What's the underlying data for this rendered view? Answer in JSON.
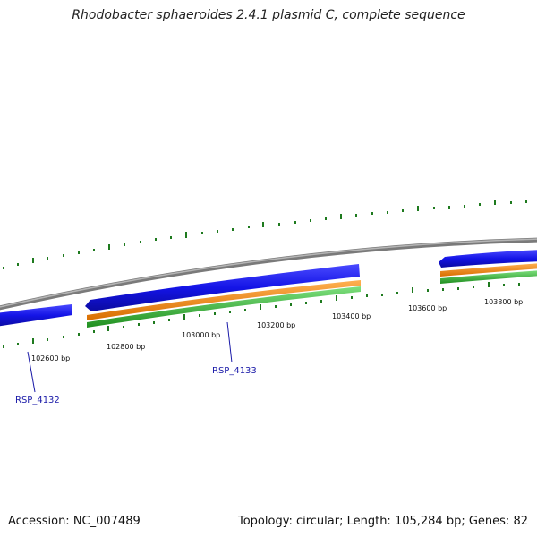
{
  "title": "Rhodobacter sphaeroides 2.4.1 plasmid C, complete sequence",
  "footer": {
    "accession": "Accession: NC_007489",
    "summary": "Topology: circular; Length: 105,284 bp; Genes: 82"
  },
  "colors": {
    "backbone": "#8c8c8c",
    "gene_forward": "#1616e8",
    "cds": "#f08a1c",
    "gene_band": "#3cb33c",
    "tick": "#1e7a1e",
    "label_link": "#1a1aa8"
  },
  "ruler_labels": [
    "102600 bp",
    "102800 bp",
    "103000 bp",
    "103200 bp",
    "103400 bp",
    "103600 bp",
    "103800 bp"
  ],
  "gene_labels": [
    "RSP_4132",
    "RSP_4133"
  ]
}
